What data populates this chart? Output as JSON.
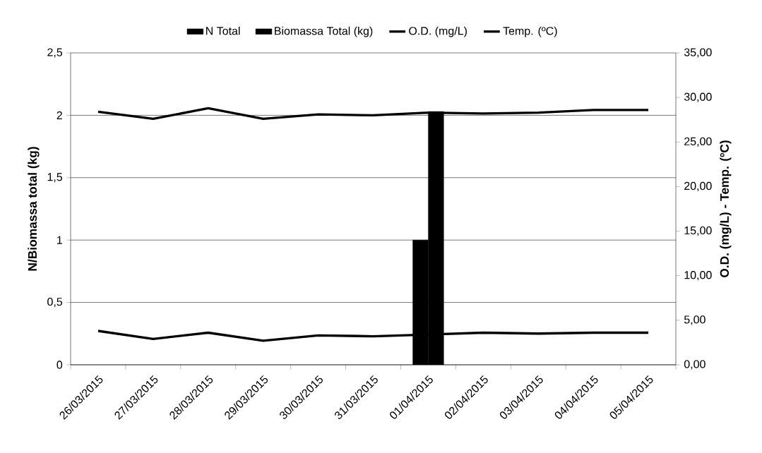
{
  "chart_data": {
    "type": "bar",
    "categories": [
      "26/03/2015",
      "27/03/2015",
      "28/03/2015",
      "29/03/2015",
      "30/03/2015",
      "31/03/2015",
      "01/04/2015",
      "02/04/2015",
      "03/04/2015",
      "04/04/2015",
      "05/04/2015"
    ],
    "series": [
      {
        "name": "N Total",
        "color": "#000000",
        "values": [
          null,
          null,
          null,
          null,
          null,
          null,
          1,
          null,
          null,
          null,
          null
        ]
      },
      {
        "name": "Biomassa Total (kg)",
        "color": "#000000",
        "values": [
          null,
          null,
          null,
          null,
          null,
          null,
          2.03,
          null,
          null,
          null,
          null
        ]
      },
      {
        "name": "O.D. (mg/L)",
        "type": "line",
        "axis": "y2",
        "color": "#000000",
        "values": [
          3.8,
          2.9,
          3.6,
          2.7,
          3.3,
          3.2,
          3.4,
          3.6,
          3.5,
          3.6,
          3.6
        ]
      },
      {
        "name": "Temp. (ºC)",
        "type": "line",
        "axis": "y2",
        "color": "#000000",
        "values": [
          28.4,
          27.6,
          28.8,
          27.6,
          28.1,
          28.0,
          28.3,
          28.2,
          28.3,
          28.6,
          28.6
        ]
      }
    ],
    "ylabel": "N/Biomassa total (kg)",
    "y2label": "O.D. (mg/L) - Temp. (ºC)",
    "ylim": [
      0,
      2.5
    ],
    "yticks": [
      0,
      {
        "value": 0.5,
        "label": "0,5"
      },
      1,
      {
        "value": 1.5,
        "label": "1,5"
      },
      2,
      {
        "value": 2.5,
        "label": "2,5"
      }
    ],
    "y2lim": [
      0,
      35
    ],
    "y2ticks": [
      {
        "value": 0,
        "label": "0,00"
      },
      {
        "value": 5,
        "label": "5,00"
      },
      {
        "value": 10,
        "label": "10,00"
      },
      {
        "value": 15,
        "label": "15,00"
      },
      {
        "value": 20,
        "label": "20,00"
      },
      {
        "value": 25,
        "label": "25,00"
      },
      {
        "value": 30,
        "label": "30,00"
      },
      {
        "value": 35,
        "label": "35,00"
      }
    ],
    "grid": "y",
    "legend": "top",
    "marker": "none",
    "line_style": "solid"
  }
}
